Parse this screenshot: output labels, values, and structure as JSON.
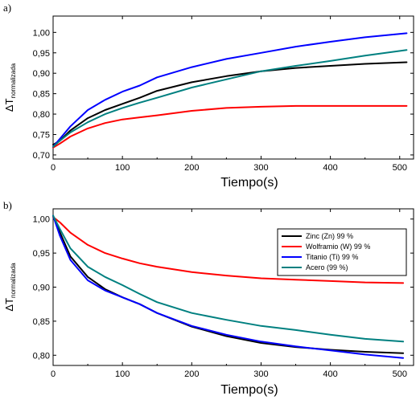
{
  "chart_data": [
    {
      "panel_label": "a)",
      "type": "line",
      "xlabel": "Tiempo(s)",
      "ylabel": "ΔT",
      "ylabel_sub": "normalizada",
      "xlim": [
        0,
        520
      ],
      "ylim": [
        0.69,
        1.04
      ],
      "xticks": [
        0,
        100,
        200,
        300,
        400,
        500
      ],
      "xtick_labels": [
        "0",
        "100",
        "200",
        "300",
        "400",
        "500"
      ],
      "yticks": [
        0.7,
        0.75,
        0.8,
        0.85,
        0.9,
        0.95,
        1.0
      ],
      "ytick_labels": [
        "0,70",
        "0,75",
        "0,80",
        "0,85",
        "0,90",
        "0,95",
        "1,00"
      ],
      "grid": false,
      "legend": "none",
      "series": [
        {
          "color": "#000000",
          "x": [
            0,
            10,
            25,
            50,
            75,
            100,
            125,
            150,
            200,
            250,
            300,
            350,
            400,
            450,
            510
          ],
          "y": [
            0.725,
            0.735,
            0.76,
            0.79,
            0.81,
            0.825,
            0.84,
            0.857,
            0.878,
            0.893,
            0.905,
            0.913,
            0.918,
            0.923,
            0.927
          ]
        },
        {
          "color": "#ff0000",
          "x": [
            0,
            10,
            25,
            50,
            75,
            100,
            125,
            150,
            200,
            250,
            300,
            350,
            400,
            450,
            510
          ],
          "y": [
            0.718,
            0.728,
            0.745,
            0.765,
            0.778,
            0.787,
            0.792,
            0.797,
            0.808,
            0.815,
            0.818,
            0.82,
            0.82,
            0.82,
            0.82
          ]
        },
        {
          "color": "#0000ff",
          "x": [
            0,
            10,
            25,
            50,
            75,
            100,
            125,
            150,
            200,
            250,
            300,
            350,
            400,
            450,
            510
          ],
          "y": [
            0.72,
            0.74,
            0.77,
            0.81,
            0.835,
            0.855,
            0.87,
            0.89,
            0.915,
            0.935,
            0.95,
            0.965,
            0.977,
            0.988,
            0.998
          ]
        },
        {
          "color": "#008080",
          "x": [
            0,
            10,
            25,
            50,
            75,
            100,
            125,
            150,
            200,
            250,
            300,
            350,
            400,
            450,
            510
          ],
          "y": [
            0.72,
            0.735,
            0.755,
            0.78,
            0.8,
            0.815,
            0.828,
            0.84,
            0.865,
            0.885,
            0.905,
            0.918,
            0.93,
            0.943,
            0.957
          ]
        }
      ]
    },
    {
      "panel_label": "b)",
      "type": "line",
      "xlabel": "Tiempo(s)",
      "ylabel": "ΔT",
      "ylabel_sub": "normalizada",
      "xlim": [
        0,
        520
      ],
      "ylim": [
        0.785,
        1.015
      ],
      "xticks": [
        0,
        100,
        200,
        300,
        400,
        500
      ],
      "xtick_labels": [
        "0",
        "100",
        "200",
        "300",
        "400",
        "500"
      ],
      "yticks": [
        0.8,
        0.85,
        0.9,
        0.95,
        1.0
      ],
      "ytick_labels": [
        "0,80",
        "0,85",
        "0,90",
        "0,95",
        "1,00"
      ],
      "grid": false,
      "legend": "top-right",
      "series": [
        {
          "name": "Zinc (Zn) 99 %",
          "color": "#000000",
          "x": [
            0,
            10,
            25,
            50,
            75,
            100,
            125,
            150,
            200,
            250,
            300,
            350,
            400,
            450,
            505
          ],
          "y": [
            1.005,
            0.98,
            0.945,
            0.915,
            0.897,
            0.885,
            0.875,
            0.862,
            0.842,
            0.828,
            0.818,
            0.812,
            0.808,
            0.805,
            0.803
          ]
        },
        {
          "name": "Wolframio (W) 99 %",
          "color": "#ff0000",
          "x": [
            0,
            10,
            25,
            50,
            75,
            100,
            125,
            150,
            200,
            250,
            300,
            350,
            400,
            450,
            505
          ],
          "y": [
            1.003,
            0.995,
            0.98,
            0.962,
            0.95,
            0.942,
            0.935,
            0.93,
            0.922,
            0.917,
            0.913,
            0.911,
            0.909,
            0.907,
            0.906
          ]
        },
        {
          "name": "Titanio (Ti) 99 %",
          "color": "#0000ff",
          "x": [
            0,
            10,
            25,
            50,
            75,
            100,
            125,
            150,
            200,
            250,
            300,
            350,
            400,
            450,
            505
          ],
          "y": [
            1.005,
            0.975,
            0.94,
            0.91,
            0.895,
            0.885,
            0.875,
            0.862,
            0.843,
            0.83,
            0.82,
            0.813,
            0.807,
            0.801,
            0.796
          ]
        },
        {
          "name": "Acero (99 %)",
          "color": "#008080",
          "x": [
            0,
            10,
            25,
            50,
            75,
            100,
            125,
            150,
            200,
            250,
            300,
            350,
            400,
            450,
            505
          ],
          "y": [
            1.005,
            0.985,
            0.957,
            0.93,
            0.915,
            0.903,
            0.89,
            0.878,
            0.862,
            0.852,
            0.843,
            0.837,
            0.83,
            0.824,
            0.82
          ]
        }
      ]
    }
  ]
}
